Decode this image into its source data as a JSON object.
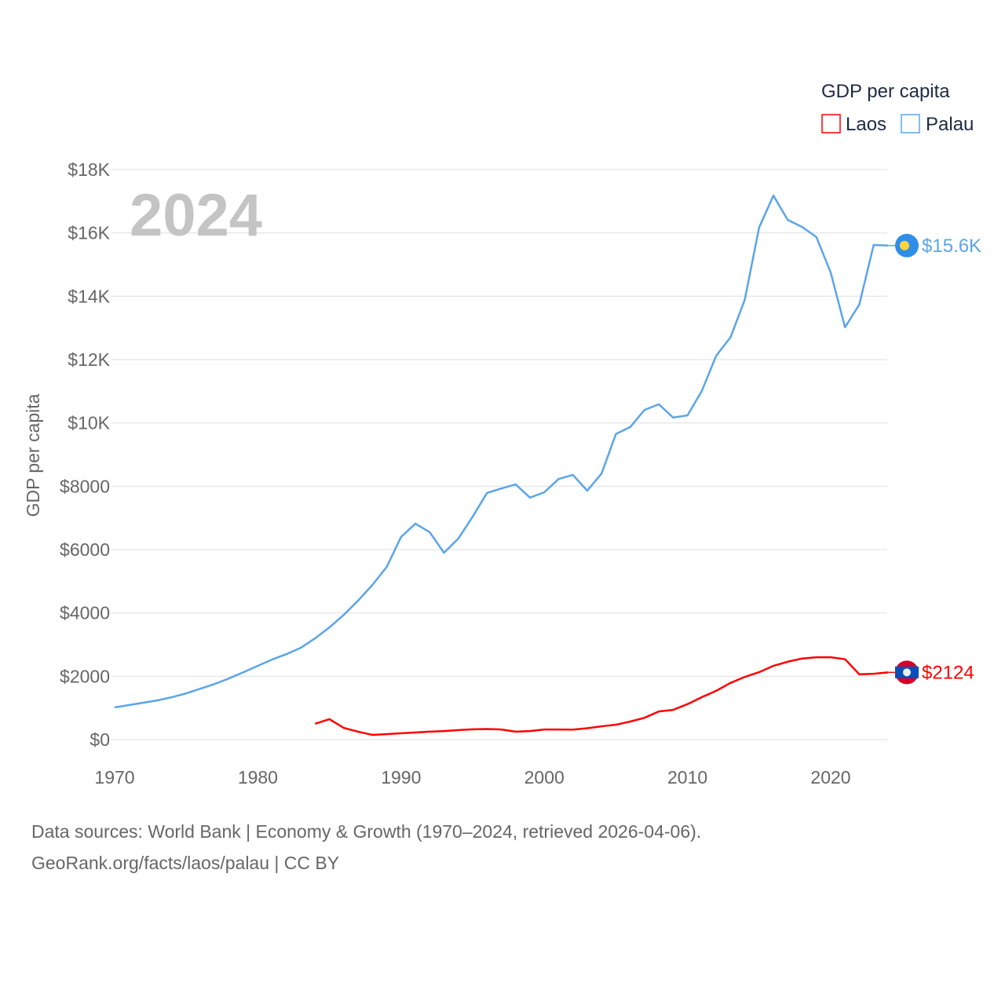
{
  "chart_data": {
    "type": "line",
    "title": "",
    "ylabel": "GDP per capita",
    "xlabel": "",
    "year_label": "2024",
    "legend": {
      "title": "GDP per capita",
      "placement": "top-right",
      "entries": [
        "Laos",
        "Palau"
      ]
    },
    "xlim": [
      1970,
      2024
    ],
    "ylim": [
      0,
      18000
    ],
    "x_ticks": [
      1970,
      1980,
      1990,
      2000,
      2010,
      2020
    ],
    "y_ticks": [
      0,
      2000,
      4000,
      6000,
      8000,
      10000,
      12000,
      14000,
      16000,
      18000
    ],
    "y_tick_labels": [
      "$0",
      "$2000",
      "$4000",
      "$6000",
      "$8000",
      "$10K",
      "$12K",
      "$14K",
      "$16K",
      "$18K"
    ],
    "grid": true,
    "series": [
      {
        "name": "Laos",
        "color": "#ff0000",
        "end_label": "$2124",
        "start_year": 1984,
        "values": [
          500,
          645,
          370,
          250,
          150,
          175,
          200,
          225,
          250,
          270,
          300,
          325,
          335,
          320,
          250,
          270,
          320,
          320,
          315,
          360,
          420,
          470,
          570,
          690,
          890,
          940,
          1120,
          1340,
          1540,
          1790,
          1980,
          2130,
          2330,
          2460,
          2560,
          2600,
          2600,
          2540,
          2060,
          2080,
          2124
        ]
      },
      {
        "name": "Palau",
        "color": "#5aa5e8",
        "end_label": "$15.6K",
        "start_year": 1970,
        "values": [
          1017,
          1090,
          1165,
          1240,
          1340,
          1460,
          1610,
          1760,
          1935,
          2130,
          2330,
          2530,
          2700,
          2900,
          3200,
          3545,
          3940,
          4390,
          4885,
          5455,
          6400,
          6820,
          6550,
          5900,
          6350,
          7040,
          7790,
          7930,
          8060,
          7640,
          7810,
          8230,
          8360,
          7860,
          8400,
          9650,
          9870,
          10410,
          10590,
          10170,
          10240,
          11010,
          12120,
          12700,
          13890,
          16170,
          17180,
          16410,
          16190,
          15870,
          14750,
          13020,
          13740,
          15620,
          15600
        ]
      }
    ]
  },
  "footer": {
    "line1": "Data sources: World Bank | Economy & Growth (1970–2024, retrieved 2026-04-06).",
    "line2": "GeoRank.org/facts/laos/palau | CC BY"
  }
}
